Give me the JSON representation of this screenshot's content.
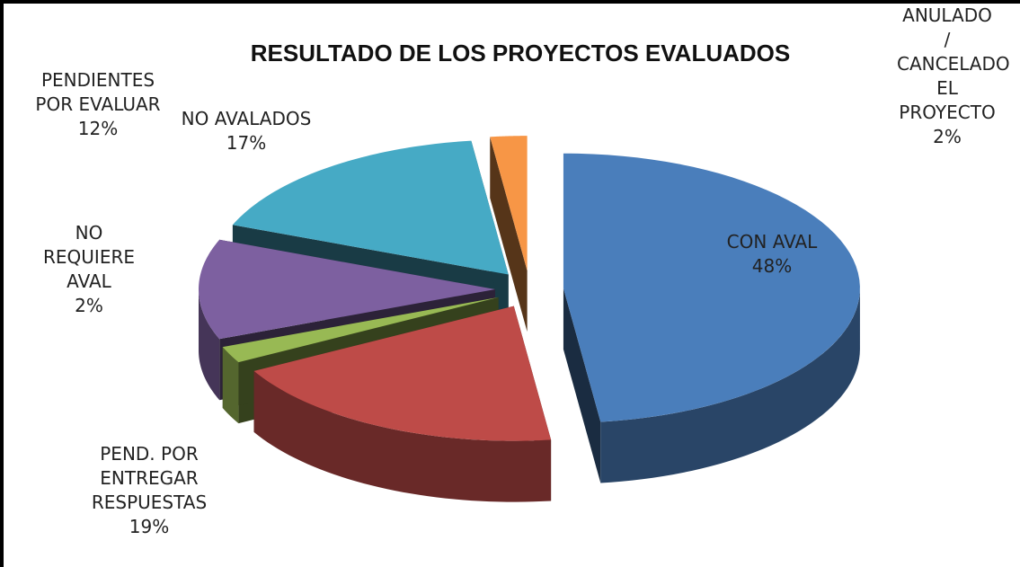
{
  "chart_data": {
    "type": "pie",
    "title": "RESULTADO DE LOS PROYECTOS EVALUADOS",
    "categories": [
      "CON AVAL",
      "PEND. POR ENTREGAR RESPUESTAS",
      "NO REQUIERE AVAL",
      "PENDIENTES POR EVALUAR",
      "NO AVALADOS",
      "ANULADO / CANCELADO EL PROYECTO"
    ],
    "values": [
      48,
      19,
      2,
      12,
      17,
      2
    ],
    "value_labels": [
      "48%",
      "19%",
      "2%",
      "12%",
      "17%",
      "2%"
    ],
    "colors": [
      "#4a7ebb",
      "#be4b48",
      "#98b954",
      "#7d60a0",
      "#46aac5",
      "#f79646"
    ]
  }
}
